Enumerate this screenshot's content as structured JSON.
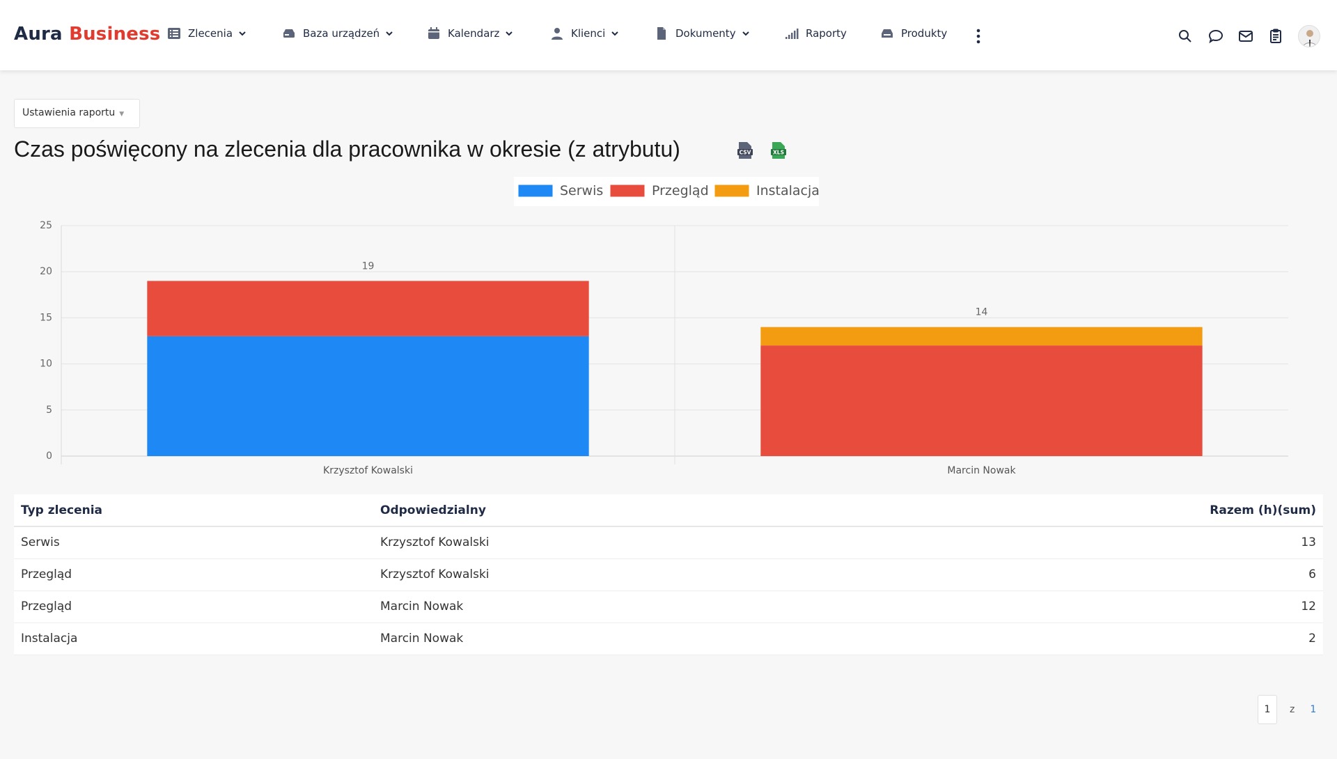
{
  "brand": {
    "part1": "Aura",
    "part2": "Business"
  },
  "nav": [
    {
      "label": "Zlecenia",
      "icon": "list-icon",
      "dropdown": true
    },
    {
      "label": "Baza urządzeń",
      "icon": "device-icon",
      "dropdown": true
    },
    {
      "label": "Kalendarz",
      "icon": "calendar-icon",
      "dropdown": true
    },
    {
      "label": "Klienci",
      "icon": "user-icon",
      "dropdown": true
    },
    {
      "label": "Dokumenty",
      "icon": "document-icon",
      "dropdown": true
    },
    {
      "label": "Raporty",
      "icon": "bar-signal-icon",
      "dropdown": false
    },
    {
      "label": "Produkty",
      "icon": "box-icon",
      "dropdown": false
    }
  ],
  "header_icons": [
    "search-icon",
    "chat-icon",
    "mail-icon",
    "clipboard-icon",
    "avatar"
  ],
  "settings": {
    "label": "Ustawienia raportu"
  },
  "page": {
    "title": "Czas poświęcony na zlecenia dla pracownika w okresie (z atrybutu)"
  },
  "export": {
    "csv_icon": "csv-export-icon",
    "xls_icon": "xls-export-icon"
  },
  "chart_data": {
    "type": "bar",
    "stacked": true,
    "categories": [
      "Krzysztof Kowalski",
      "Marcin Nowak"
    ],
    "series": [
      {
        "name": "Serwis",
        "values": [
          13,
          0
        ],
        "color": "#1e88f5"
      },
      {
        "name": "Przegląd",
        "values": [
          6,
          12
        ],
        "color": "#e74c3c"
      },
      {
        "name": "Instalacja",
        "values": [
          0,
          2
        ],
        "color": "#f39c12"
      }
    ],
    "totals": [
      19,
      14
    ],
    "ylim": [
      0,
      25
    ],
    "yticks": [
      0,
      5,
      10,
      15,
      20,
      25
    ],
    "grid": true,
    "legend": "top-center"
  },
  "table": {
    "headers": [
      "Typ zlecenia",
      "Odpowiedzialny",
      "Razem (h)(sum)"
    ],
    "rows": [
      [
        "Serwis",
        "Krzysztof Kowalski",
        "13"
      ],
      [
        "Przegląd",
        "Krzysztof Kowalski",
        "6"
      ],
      [
        "Przegląd",
        "Marcin Nowak",
        "12"
      ],
      [
        "Instalacja",
        "Marcin Nowak",
        "2"
      ]
    ]
  },
  "pagination": {
    "current": "1",
    "of_label": "z",
    "total": "1"
  }
}
